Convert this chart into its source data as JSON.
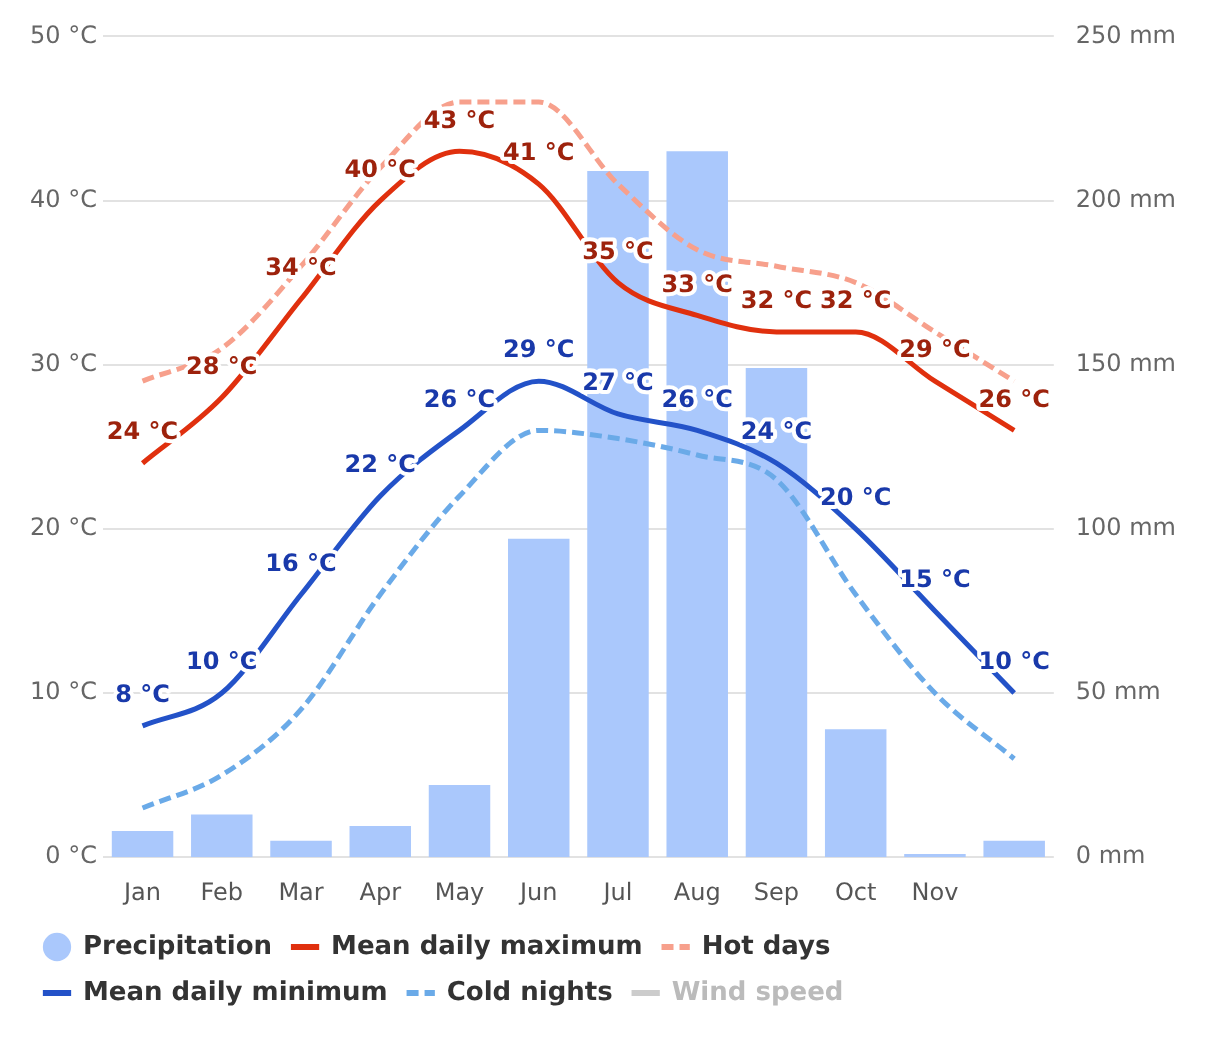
{
  "chart_data": {
    "type": "line",
    "categories": [
      "Jan",
      "Feb",
      "Mar",
      "Apr",
      "May",
      "Jun",
      "Jul",
      "Aug",
      "Sep",
      "Oct",
      "Nov",
      null
    ],
    "series": [
      {
        "name": "Precipitation",
        "type": "bar",
        "axis": "y2",
        "color": "#aac8fc",
        "marker": "circle",
        "values": [
          8,
          13,
          5,
          9.5,
          22,
          97,
          209,
          215,
          149,
          39,
          1,
          5
        ]
      },
      {
        "name": "Mean daily maximum",
        "color": "#e0300e",
        "line_style": "solid",
        "values": [
          24,
          28,
          34,
          40,
          43,
          41,
          35,
          33,
          32,
          32,
          29,
          26
        ],
        "value_labels": [
          "24 °C",
          "28 °C",
          "34 °C",
          "40 °C",
          "43 °C",
          "41 °C",
          "35 °C",
          "33 °C",
          "32 °C",
          "32 °C",
          "29 °C",
          "26 °C"
        ]
      },
      {
        "name": "Hot days",
        "color": "#f7a08c",
        "line_style": "dashed",
        "values": [
          29,
          31,
          36,
          42,
          46,
          46,
          41,
          37,
          36,
          35,
          32,
          29
        ]
      },
      {
        "name": "Mean daily minimum",
        "color": "#2352c8",
        "line_style": "solid",
        "values": [
          8,
          10,
          16,
          22,
          26,
          29,
          27,
          26,
          24,
          20,
          15,
          10
        ],
        "value_labels": [
          "8 °C",
          "10 °C",
          "16 °C",
          "22 °C",
          "26 °C",
          "29 °C",
          "27 °C",
          "26 °C",
          "24 °C",
          "20 °C",
          "15 °C",
          "10 °C"
        ]
      },
      {
        "name": "Cold nights",
        "color": "#6aaae8",
        "line_style": "dashed",
        "values": [
          3,
          5,
          9,
          16,
          22,
          26,
          25.5,
          24.5,
          23,
          16,
          10,
          6
        ]
      },
      {
        "name": "Wind speed",
        "color": "#cccccc",
        "line_style": "solid",
        "values": [
          null,
          null,
          null,
          null,
          null,
          null,
          null,
          null,
          null,
          null,
          null,
          null
        ]
      }
    ],
    "ylim": [
      0,
      50
    ],
    "yticks": [
      {
        "value": 0,
        "label": "0 °C"
      },
      {
        "value": 10,
        "label": "10 °C"
      },
      {
        "value": 20,
        "label": "20 °C"
      },
      {
        "value": 30,
        "label": "30 °C"
      },
      {
        "value": 40,
        "label": "40 °C"
      },
      {
        "value": 50,
        "label": "50 °C"
      }
    ],
    "y2lim": [
      0,
      250
    ],
    "y2ticks": [
      {
        "value": 0,
        "label": "0 mm"
      },
      {
        "value": 50,
        "label": "50 mm"
      },
      {
        "value": 100,
        "label": "100 mm"
      },
      {
        "value": 150,
        "label": "150 mm"
      },
      {
        "value": 200,
        "label": "200 mm"
      },
      {
        "value": 250,
        "label": "250 mm"
      }
    ],
    "grid": "y",
    "legend": "bottom",
    "marker": "none"
  }
}
